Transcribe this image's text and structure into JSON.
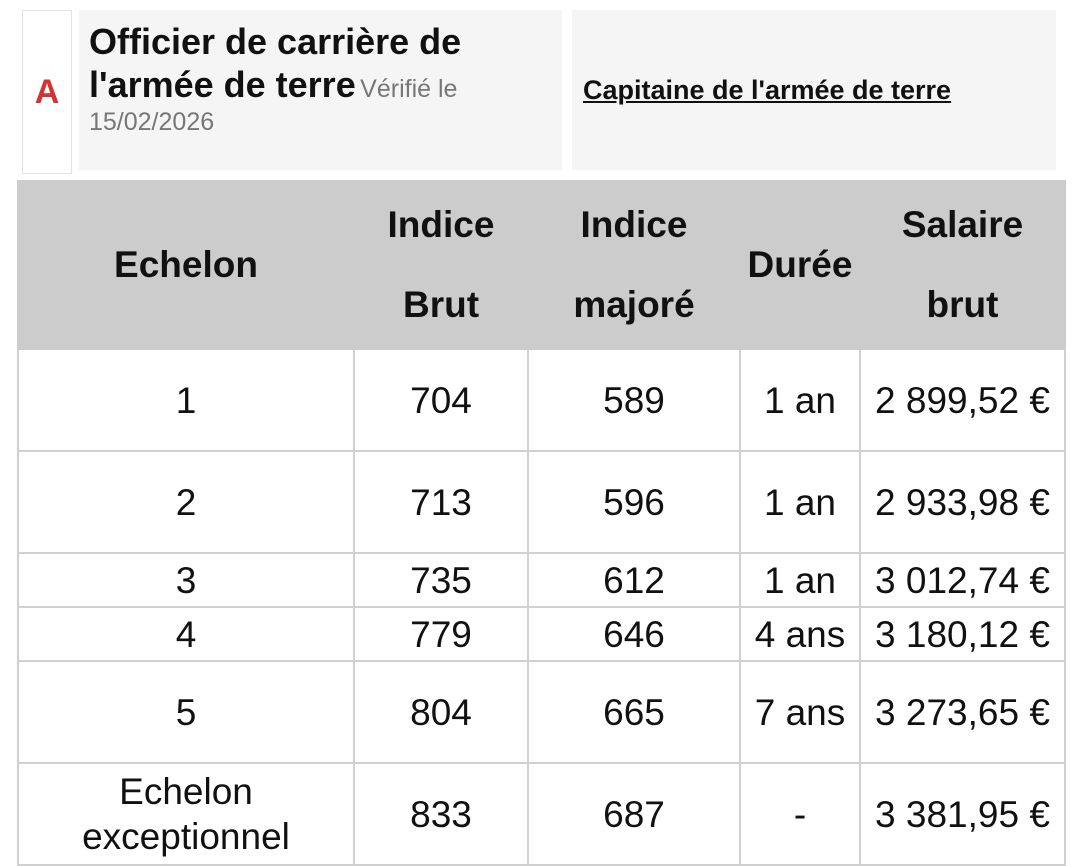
{
  "header": {
    "category_letter": "A",
    "title": "Officier de carrière de l'armée de terre",
    "verified_label": "Vérifié le",
    "verified_date": "15/02/2026",
    "grade_link": "Capitaine de l'armée de terre"
  },
  "table": {
    "headers": {
      "echelon": "Echelon",
      "indice_brut_1": "Indice",
      "indice_brut_2": "Brut",
      "indice_majore_1": "Indice",
      "indice_majore_2": "majoré",
      "duree": "Durée",
      "salaire_1": "Salaire",
      "salaire_2": "brut"
    },
    "rows": [
      {
        "echelon": "1",
        "indice_brut": "704",
        "indice_majore": "589",
        "duree": "1 an",
        "salaire": "2 899,52 €"
      },
      {
        "echelon": "2",
        "indice_brut": "713",
        "indice_majore": "596",
        "duree": "1 an",
        "salaire": "2 933,98 €"
      },
      {
        "echelon": "3",
        "indice_brut": "735",
        "indice_majore": "612",
        "duree": "1 an",
        "salaire": "3 012,74 €"
      },
      {
        "echelon": "4",
        "indice_brut": "779",
        "indice_majore": "646",
        "duree": "4 ans",
        "salaire": "3 180,12 €"
      },
      {
        "echelon": "5",
        "indice_brut": "804",
        "indice_majore": "665",
        "duree": "7 ans",
        "salaire": "3 273,65 €"
      },
      {
        "echelon": "Echelon exceptionnel",
        "indice_brut": "833",
        "indice_majore": "687",
        "duree": "-",
        "salaire": "3 381,95 €"
      }
    ]
  }
}
